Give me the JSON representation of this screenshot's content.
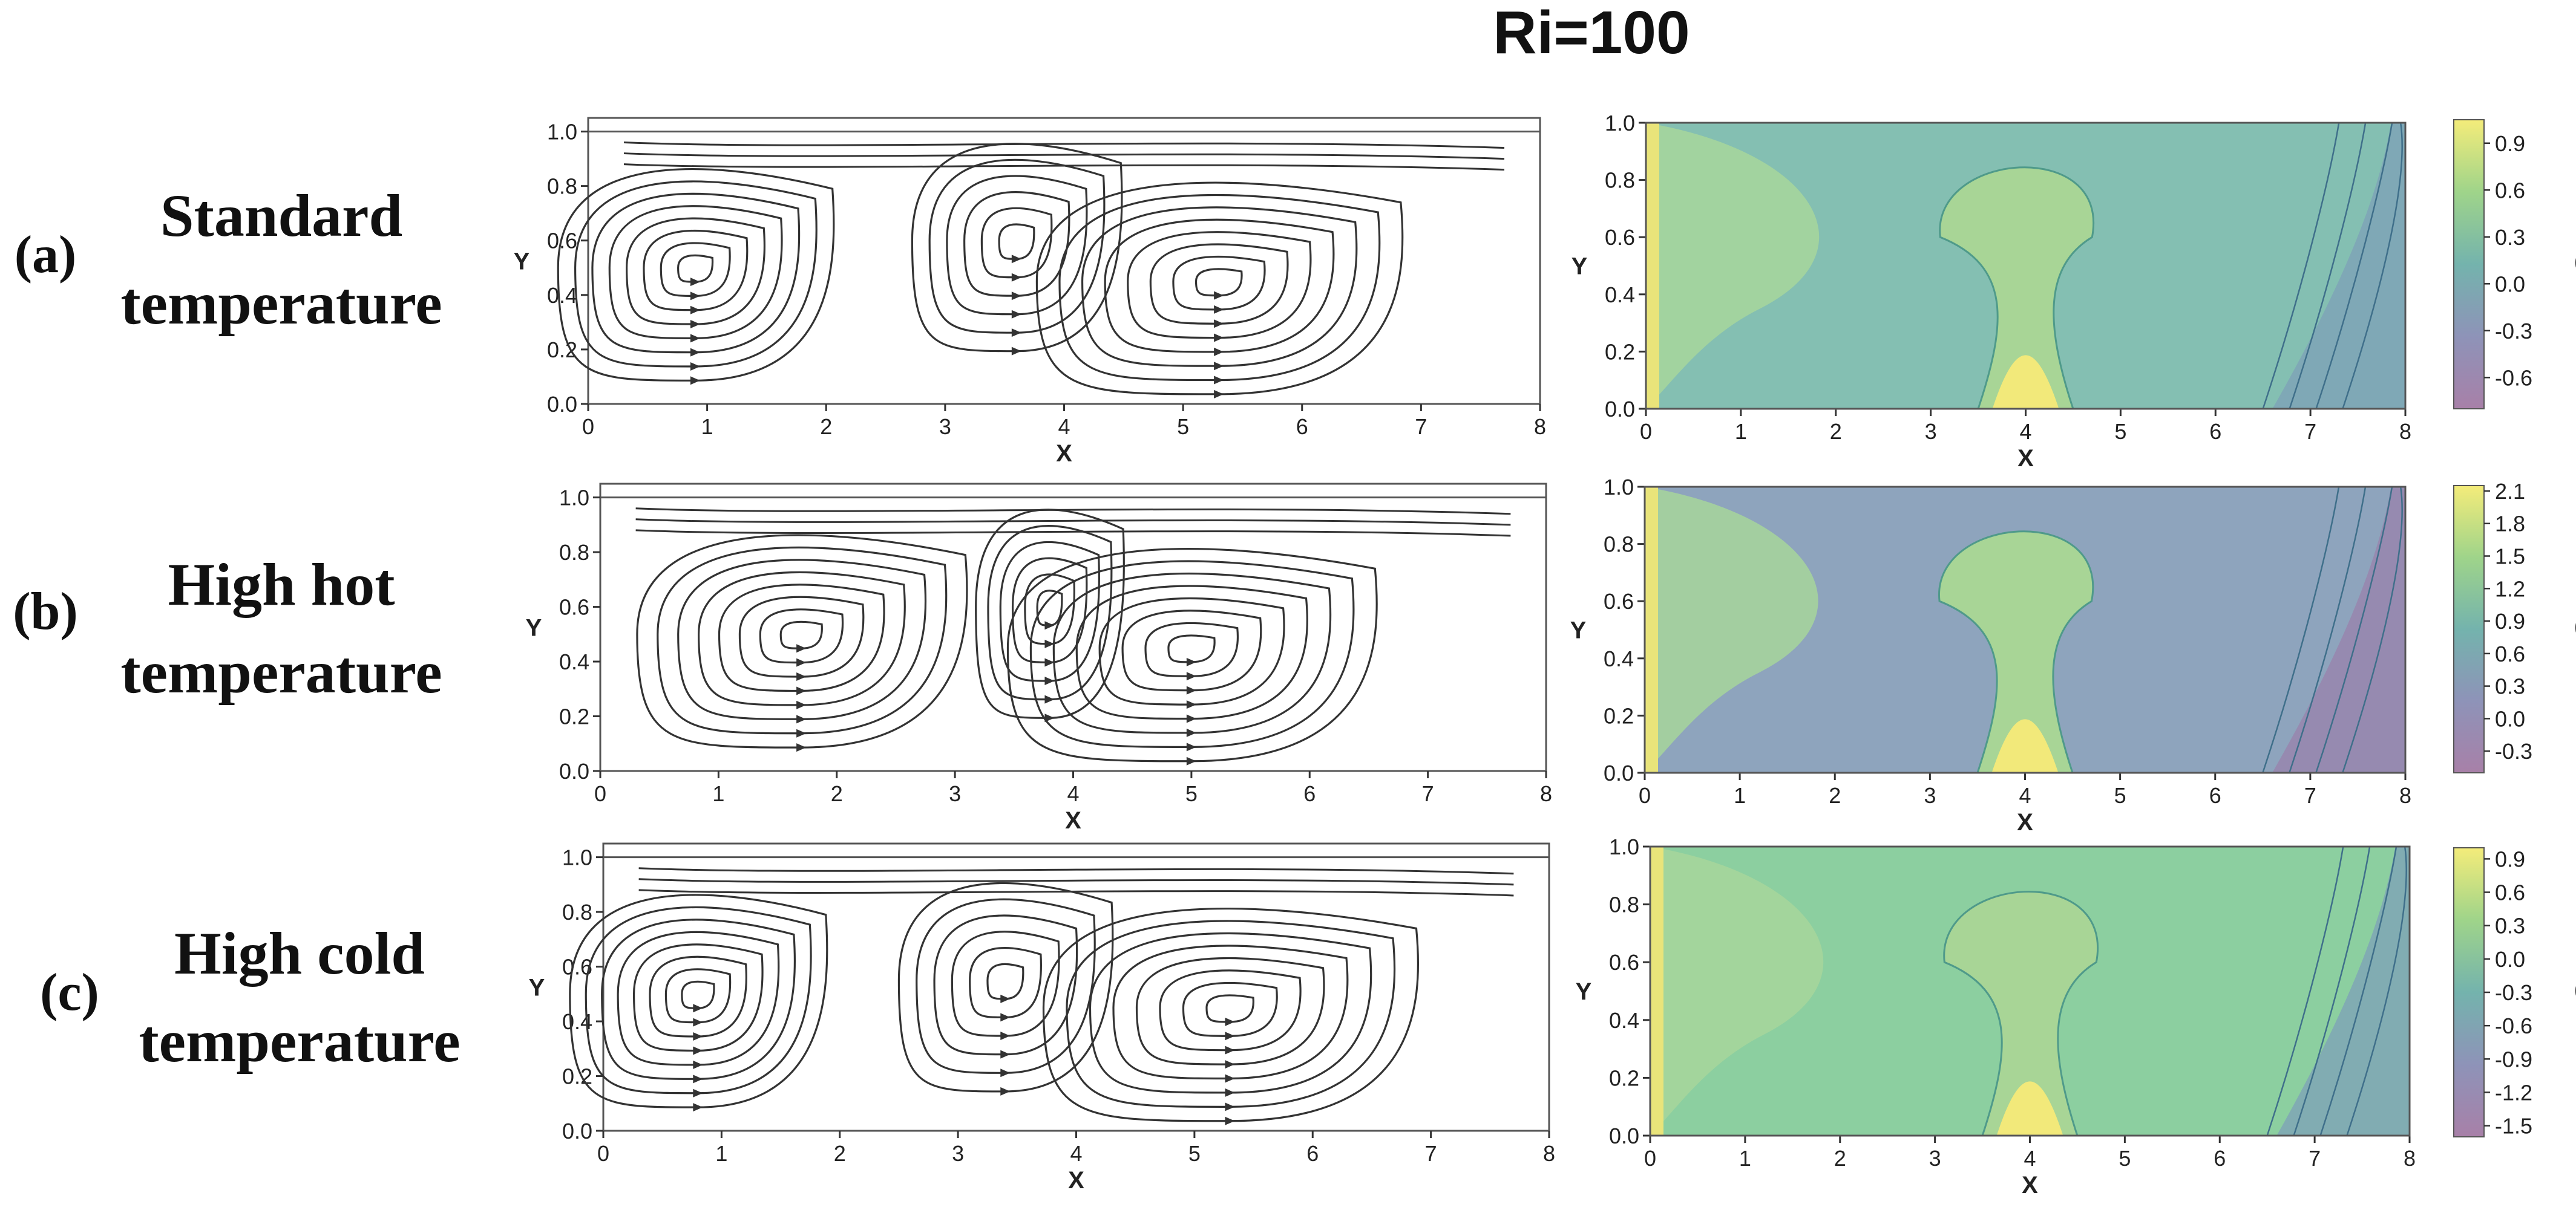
{
  "figure_title": "Ri=100",
  "rows": [
    {
      "letter": "(a)",
      "line1": "Standard",
      "line2": "temperature"
    },
    {
      "letter": "(b)",
      "line1": "High hot",
      "line2": "temperature"
    },
    {
      "letter": "(c)",
      "line1": "High cold",
      "line2": "temperature"
    }
  ],
  "chart_data": [
    {
      "type": "streamline",
      "panel": "(a) streamlines",
      "xlabel": "X",
      "ylabel": "Y",
      "xlim": [
        0,
        8
      ],
      "ylim": [
        0,
        1.05
      ],
      "x_ticks": [
        "0",
        "1",
        "2",
        "3",
        "4",
        "5",
        "6",
        "7",
        "8"
      ],
      "y_ticks": [
        "0.0",
        "0.2",
        "0.4",
        "0.6",
        "0.8",
        "1.0"
      ],
      "vortex_centers": [
        [
          0.9,
          0.5
        ],
        [
          3.6,
          0.6
        ],
        [
          5.3,
          0.45
        ]
      ]
    },
    {
      "type": "contour",
      "panel": "(a) temperature",
      "xlabel": "X",
      "ylabel": "Y",
      "colorbar_label": "θ",
      "xlim": [
        0,
        8
      ],
      "ylim": [
        0,
        1.0
      ],
      "x_ticks": [
        "0",
        "1",
        "2",
        "3",
        "4",
        "5",
        "6",
        "7",
        "8"
      ],
      "y_ticks": [
        "0.0",
        "0.2",
        "0.4",
        "0.6",
        "0.8",
        "1.0"
      ],
      "colorbar_range": [
        -0.8,
        1.05
      ],
      "colorbar_ticks": [
        "0.9",
        "0.6",
        "0.3",
        "0.0",
        "-0.3",
        "-0.6"
      ],
      "heat_source_x": [
        3.5,
        4.5
      ],
      "hot_wall": "left",
      "cold_wall": "right"
    },
    {
      "type": "streamline",
      "panel": "(b) streamlines",
      "xlabel": "X",
      "ylabel": "Y",
      "xlim": [
        0,
        8
      ],
      "ylim": [
        0,
        1.05
      ],
      "x_ticks": [
        "0",
        "1",
        "2",
        "3",
        "4",
        "5",
        "6",
        "7",
        "8"
      ],
      "y_ticks": [
        "0.0",
        "0.2",
        "0.4",
        "0.6",
        "0.8",
        "1.0"
      ],
      "vortex_centers": [
        [
          1.7,
          0.5
        ],
        [
          3.8,
          0.6
        ],
        [
          5.0,
          0.45
        ]
      ]
    },
    {
      "type": "contour",
      "panel": "(b) temperature",
      "xlabel": "X",
      "ylabel": "Y",
      "colorbar_label": "θ",
      "xlim": [
        0,
        8
      ],
      "ylim": [
        0,
        1.0
      ],
      "x_ticks": [
        "0",
        "1",
        "2",
        "3",
        "4",
        "5",
        "6",
        "7",
        "8"
      ],
      "y_ticks": [
        "0.0",
        "0.2",
        "0.4",
        "0.6",
        "0.8",
        "1.0"
      ],
      "colorbar_range": [
        -0.5,
        2.15
      ],
      "colorbar_ticks": [
        "2.1",
        "1.8",
        "1.5",
        "1.2",
        "0.9",
        "0.6",
        "0.3",
        "0.0",
        "-0.3"
      ],
      "heat_source_x": [
        3.5,
        4.5
      ],
      "hot_wall": "left",
      "cold_wall": "right"
    },
    {
      "type": "streamline",
      "panel": "(c) streamlines",
      "xlabel": "X",
      "ylabel": "Y",
      "xlim": [
        0,
        8
      ],
      "ylim": [
        0,
        1.05
      ],
      "x_ticks": [
        "0",
        "1",
        "2",
        "3",
        "4",
        "5",
        "6",
        "7",
        "8"
      ],
      "y_ticks": [
        "0.0",
        "0.2",
        "0.4",
        "0.6",
        "0.8",
        "1.0"
      ],
      "vortex_centers": [
        [
          0.8,
          0.5
        ],
        [
          3.4,
          0.55
        ],
        [
          5.3,
          0.45
        ]
      ]
    },
    {
      "type": "contour",
      "panel": "(c) temperature",
      "xlabel": "X",
      "ylabel": "Y",
      "colorbar_label": "θ",
      "xlim": [
        0,
        8
      ],
      "ylim": [
        0,
        1.0
      ],
      "x_ticks": [
        "0",
        "1",
        "2",
        "3",
        "4",
        "5",
        "6",
        "7",
        "8"
      ],
      "y_ticks": [
        "0.0",
        "0.2",
        "0.4",
        "0.6",
        "0.8",
        "1.0"
      ],
      "colorbar_range": [
        -1.6,
        1.0
      ],
      "colorbar_ticks": [
        "0.9",
        "0.6",
        "0.3",
        "0.0",
        "-0.3",
        "-0.6",
        "-0.9",
        "-1.2",
        "-1.5"
      ],
      "heat_source_x": [
        3.5,
        4.5
      ],
      "hot_wall": "left",
      "cold_wall": "right"
    }
  ],
  "colors": {
    "streamline": "#333333",
    "cmap": [
      "#440154",
      "#3b528b",
      "#21918c",
      "#5ec962",
      "#fde725"
    ]
  }
}
